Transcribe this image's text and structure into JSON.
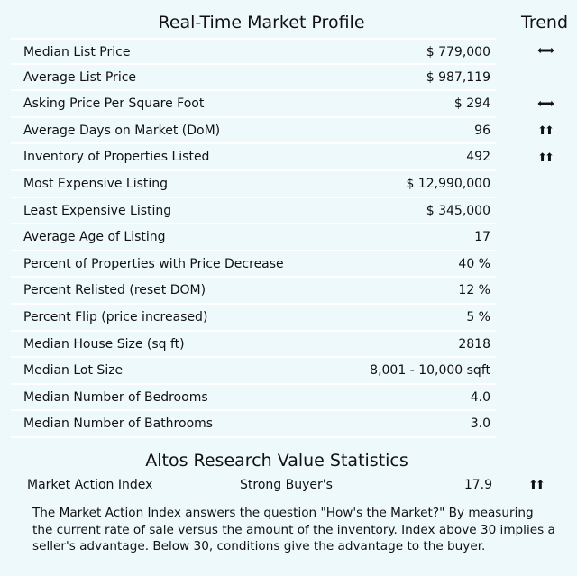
{
  "header": {
    "title": "Real-Time Market Profile",
    "trend_label": "Trend"
  },
  "profile_rows": [
    {
      "label": "Median List Price",
      "value": "$ 779,000",
      "trend": "left-right-arrows-icon"
    },
    {
      "label": "Average List Price",
      "value": "$ 987,119",
      "trend": ""
    },
    {
      "label": "Asking Price Per Square Foot",
      "value": "$ 294",
      "trend": "left-right-arrows-icon"
    },
    {
      "label": "Average Days on Market (DoM)",
      "value": "96",
      "trend": "double-up-arrows-icon"
    },
    {
      "label": "Inventory of Properties Listed",
      "value": "492",
      "trend": "double-up-arrows-icon"
    },
    {
      "label": "Most Expensive Listing",
      "value": "$ 12,990,000",
      "trend": ""
    },
    {
      "label": "Least Expensive Listing",
      "value": "$ 345,000",
      "trend": ""
    },
    {
      "label": "Average Age of Listing",
      "value": "17",
      "trend": ""
    },
    {
      "label": "Percent of Properties with Price Decrease",
      "value": "40 %",
      "trend": ""
    },
    {
      "label": "Percent Relisted (reset DOM)",
      "value": "12 %",
      "trend": ""
    },
    {
      "label": "Percent Flip (price increased)",
      "value": "5 %",
      "trend": ""
    },
    {
      "label": "Median House Size (sq ft)",
      "value": "2818",
      "trend": ""
    },
    {
      "label": "Median Lot Size",
      "value": "8,001 - 10,000 sqft",
      "trend": ""
    },
    {
      "label": "Median Number of Bedrooms",
      "value": "4.0",
      "trend": ""
    },
    {
      "label": "Median Number of Bathrooms",
      "value": "3.0",
      "trend": ""
    }
  ],
  "stats": {
    "title": "Altos Research Value Statistics",
    "mai_label": "Market Action Index",
    "mai_status": "Strong Buyer's",
    "mai_value": "17.9",
    "mai_trend": "double-up-arrows-icon",
    "explanation": "The Market Action Index answers the question \"How's the Market?\" By measuring the current rate of sale versus the amount of the inventory.  Index above 30 implies a seller's advantage. Below 30, conditions give the advantage to the buyer."
  },
  "icons": {
    "left-right-arrows-icon": "⬅➡",
    "double-up-arrows-icon": "⬆⬆"
  }
}
